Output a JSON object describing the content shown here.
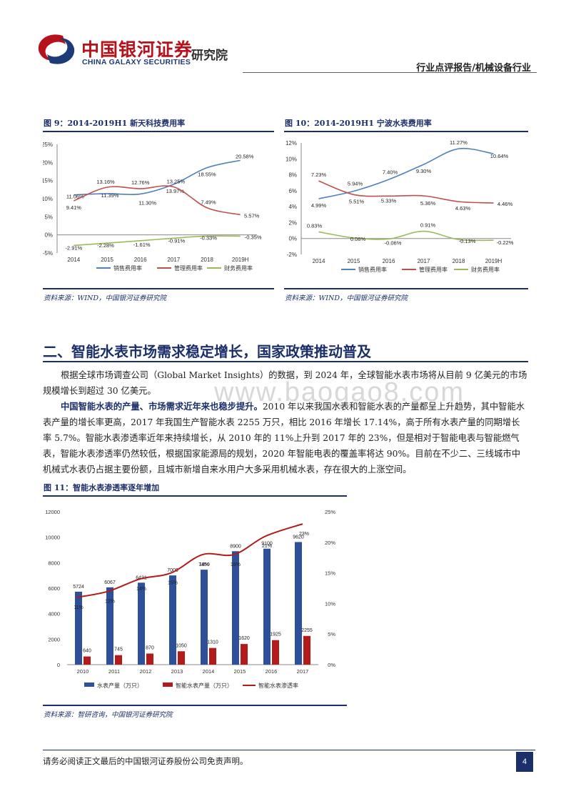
{
  "header": {
    "company_cn": "中国银河证券",
    "company_en": "CHINA GALAXY SECURITIES",
    "institute": "研究院",
    "report_type": "行业点评报告/机械设备行业"
  },
  "watermark": "www.baogao8.com",
  "fig9": {
    "title": "图 9：2014-2019H1 新天科技费用率",
    "source": "资料来源：WIND，中国银河证券研究院"
  },
  "fig10": {
    "title": "图 10：2014-2019H1 宁波水表费用率",
    "source": "资料来源：WIND，中国银河证券研究院"
  },
  "section": {
    "heading": "二、智能水表市场需求稳定增长，国家政策推动普及",
    "para1": "根据全球市场调查公司（Global Market Insights）的数据，到 2024 年，全球智能水表市场将从目前 9 亿美元的市场规模增长到超过 30 亿美元。",
    "para2_bold": "中国智能水表的产量、市场需求近年来也稳步提升。",
    "para2_rest": "2010 年以来我国水表和智能水表的产量都呈上升趋势，其中智能水表产量的增长率更高，2017 年我国生产智能水表 2255 万只，相比 2016 年增长 17.14%，高于所有水表产量的同期增长率 5.7%。智能水表渗透率近年来持续增长，从 2010 年的 11%上升到 2017 年的 23%，但是相对于智能电表与智能燃气表，智能水表渗透率仍然较低，根据国家能源局的规划，2020 年智能电表的覆盖率将达 90%。目前在不少二、三线城市中机械式水表仍占据主要份额，且城市新增自来水用户大多采用机械水表，存在很大的上涨空间。"
  },
  "fig11": {
    "title": "图 11：智能水表渗透率逐年增加",
    "source": "资料来源：智研咨询，中国银河证券研究院"
  },
  "footer": {
    "note": "请务必阅读正文最后的中国银河证券股份公司免责声明。",
    "page": "4"
  },
  "chart_data": [
    {
      "id": "fig9",
      "type": "line",
      "categories": [
        "2014",
        "2015",
        "2016",
        "2017",
        "2018",
        "2019H"
      ],
      "ylim": [
        -5,
        25
      ],
      "yticks": [
        "-5%",
        "0%",
        "5%",
        "10%",
        "15%",
        "20%",
        "25%"
      ],
      "series": [
        {
          "name": "销售费用率",
          "color": "#4f81bd",
          "values": [
            11.06,
            11.39,
            11.3,
            13.97,
            18.55,
            20.58
          ],
          "labels": [
            "11.06%",
            "11.39%",
            "11.30%",
            "13.97%",
            "18.55%",
            "20.58%"
          ]
        },
        {
          "name": "管理费用率",
          "color": "#c0504d",
          "values": [
            9.41,
            13.16,
            12.76,
            13.25,
            7.49,
            5.57
          ],
          "labels": [
            "9.41%",
            "13.16%",
            "12.76%",
            "13.25%",
            "7.49%",
            "5.57%"
          ]
        },
        {
          "name": "财务费用率",
          "color": "#9bbb59",
          "values": [
            -2.91,
            -2.28,
            -1.61,
            -0.91,
            -0.33,
            -0.35
          ],
          "labels": [
            "-2.91%",
            "-2.28%",
            "-1.61%",
            "-0.91%",
            "-0.33%",
            "-0.35%"
          ]
        }
      ],
      "legend": "bottom"
    },
    {
      "id": "fig10",
      "type": "line",
      "categories": [
        "2014",
        "2015",
        "2016",
        "2017",
        "2018",
        "2019H"
      ],
      "ylim": [
        -2,
        12
      ],
      "yticks": [
        "-2%",
        "0%",
        "2%",
        "4%",
        "6%",
        "8%",
        "10%",
        "12%"
      ],
      "series": [
        {
          "name": "销售费用率",
          "color": "#4f81bd",
          "values": [
            4.99,
            5.94,
            7.4,
            9.3,
            11.27,
            10.64
          ],
          "labels": [
            "4.99%",
            "5.94%",
            "7.40%",
            "9.30%",
            "11.27%",
            "10.64%"
          ]
        },
        {
          "name": "管理费用率",
          "color": "#c0504d",
          "values": [
            7.23,
            5.51,
            5.33,
            5.36,
            4.63,
            4.46
          ],
          "labels": [
            "7.23%",
            "5.51%",
            "5.33%",
            "5.36%",
            "4.63%",
            "4.46%"
          ]
        },
        {
          "name": "财务费用率",
          "color": "#9bbb59",
          "values": [
            0.83,
            0.08,
            -0.06,
            0.91,
            -0.13,
            -0.22
          ],
          "labels": [
            "0.83%",
            "0.08%",
            "-0.06%",
            "0.91%",
            "-0.13%",
            "-0.22%"
          ]
        }
      ],
      "legend": "bottom"
    },
    {
      "id": "fig11",
      "type": "bar",
      "categories": [
        "2010",
        "2011",
        "2012",
        "2013",
        "2014",
        "2015",
        "2016",
        "2017"
      ],
      "ylim": [
        0,
        12000
      ],
      "yticks": [
        "0",
        "2000",
        "4000",
        "6000",
        "8000",
        "10000",
        "12000"
      ],
      "y2lim": [
        0,
        25
      ],
      "y2ticks": [
        "0%",
        "5%",
        "10%",
        "15%",
        "20%",
        "25%"
      ],
      "series": [
        {
          "name": "水表产量（万只）",
          "color": "#2e4f9a",
          "values": [
            5724,
            6067,
            6431,
            7000,
            7450,
            8900,
            9100,
            9620
          ],
          "labels": [
            "5724",
            "6067",
            "6431",
            "7000",
            "7450",
            "8900",
            "9100",
            "9620"
          ]
        },
        {
          "name": "智能水表产量（万只）",
          "color": "#b31b1b",
          "values": [
            640,
            745,
            870,
            1050,
            1310,
            1620,
            1925,
            2255
          ],
          "labels": [
            "640",
            "745",
            "870",
            "1050",
            "1310",
            "1620",
            "1925",
            "2255"
          ]
        },
        {
          "name": "智能水表渗透率",
          "color": "#b31b1b",
          "axis": "right",
          "type": "line",
          "values": [
            11,
            12,
            14,
            15,
            18,
            18,
            21,
            23
          ],
          "labels": [
            "11%",
            "12%",
            "14%",
            "15%",
            "18%",
            "18%",
            "21%",
            "23%"
          ]
        }
      ],
      "legend": "bottom"
    }
  ]
}
